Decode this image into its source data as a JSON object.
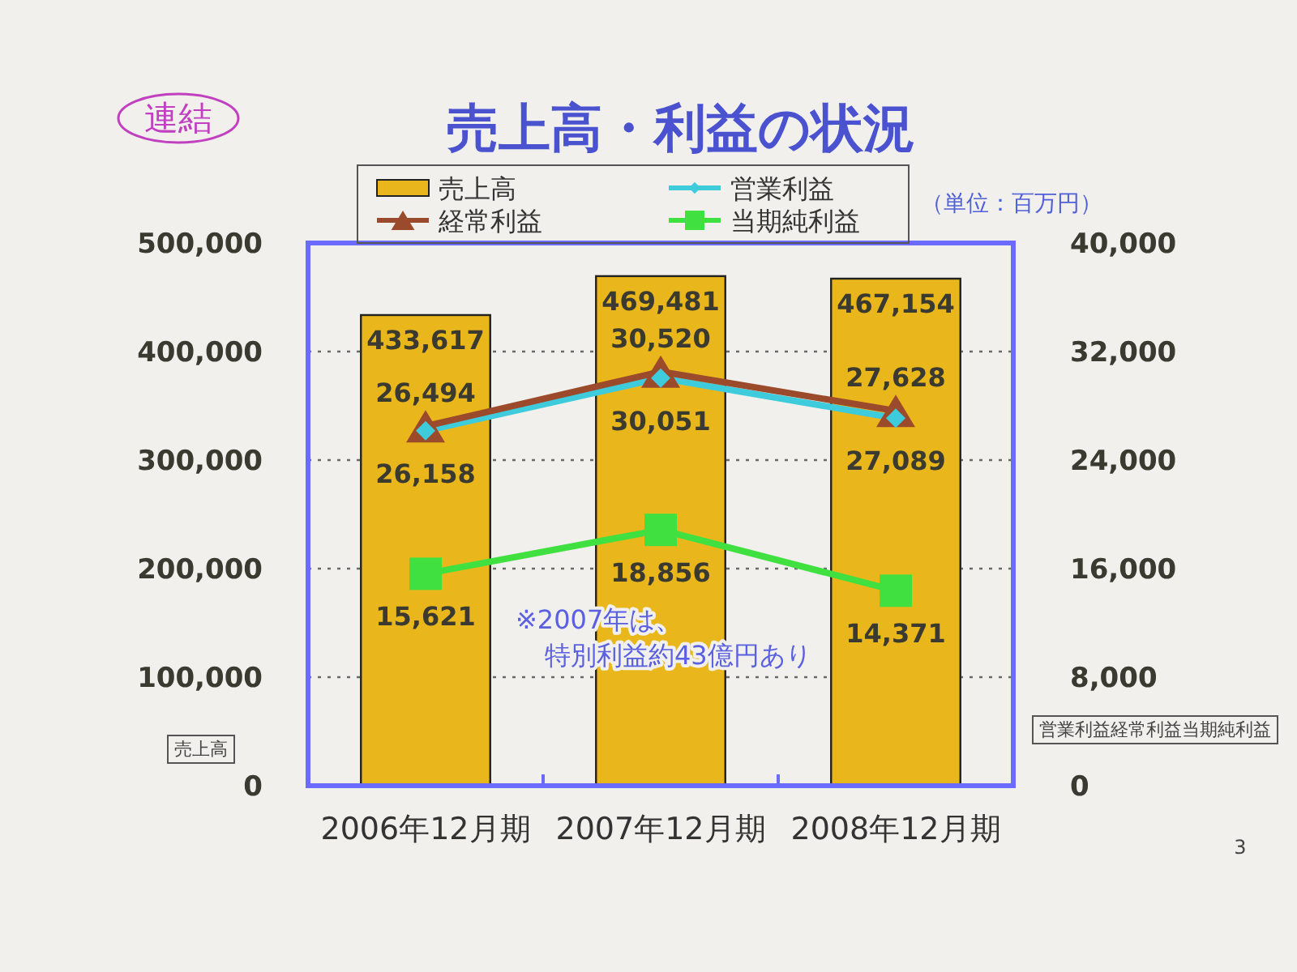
{
  "chart_data": {
    "type": "bar",
    "title": "売上高・利益の状況",
    "ylabel": "売上高",
    "y2label": "営業利益経常利益当期純利益",
    "categories": [
      "2006年12月期",
      "2007年12月期",
      "2008年12月期"
    ],
    "series": [
      {
        "name": "売上高",
        "color": "#e9b71c",
        "values": [
          433617,
          469481,
          467154
        ],
        "value_labels": [
          "433,617",
          "469,481",
          "467,154"
        ]
      },
      {
        "name": "営業利益",
        "type": "line",
        "axis": "y2",
        "color": "#3ecbdc",
        "marker": "diamond",
        "values": [
          26158,
          30051,
          27089
        ],
        "value_labels": [
          "26,158",
          "30,051",
          "27,089"
        ]
      },
      {
        "name": "経常利益",
        "type": "line",
        "axis": "y2",
        "color": "#9c4a2c",
        "marker": "triangle",
        "values": [
          26494,
          30520,
          27628
        ],
        "value_labels": [
          "26,494",
          "30,520",
          "27,628"
        ]
      },
      {
        "name": "当期純利益",
        "type": "line",
        "axis": "y2",
        "color": "#40e040",
        "marker": "square",
        "values": [
          15621,
          18856,
          14371
        ],
        "value_labels": [
          "15,621",
          "18,856",
          "14,371"
        ]
      }
    ],
    "ylim": [
      0,
      500000
    ],
    "yticks": [
      0,
      {
        "value": 100000,
        "label": "100,000"
      },
      {
        "value": 200000,
        "label": "200,000"
      },
      {
        "value": 300000,
        "label": "300,000"
      },
      {
        "value": 400000,
        "label": "400,000"
      },
      {
        "value": 500000,
        "label": "500,000"
      }
    ],
    "y2lim": [
      0,
      40000
    ],
    "y2ticks": [
      0,
      {
        "value": 8000,
        "label": "8,000"
      },
      {
        "value": 16000,
        "label": "16,000"
      },
      {
        "value": 24000,
        "label": "24,000"
      },
      {
        "value": 32000,
        "label": "32,000"
      },
      {
        "value": 40000,
        "label": "40,000"
      }
    ],
    "grid": "y",
    "legend": "top",
    "annotations": [
      "連結",
      "（単位：百万円）",
      "※2007年は、特別利益約43億円あり",
      "3"
    ]
  }
}
